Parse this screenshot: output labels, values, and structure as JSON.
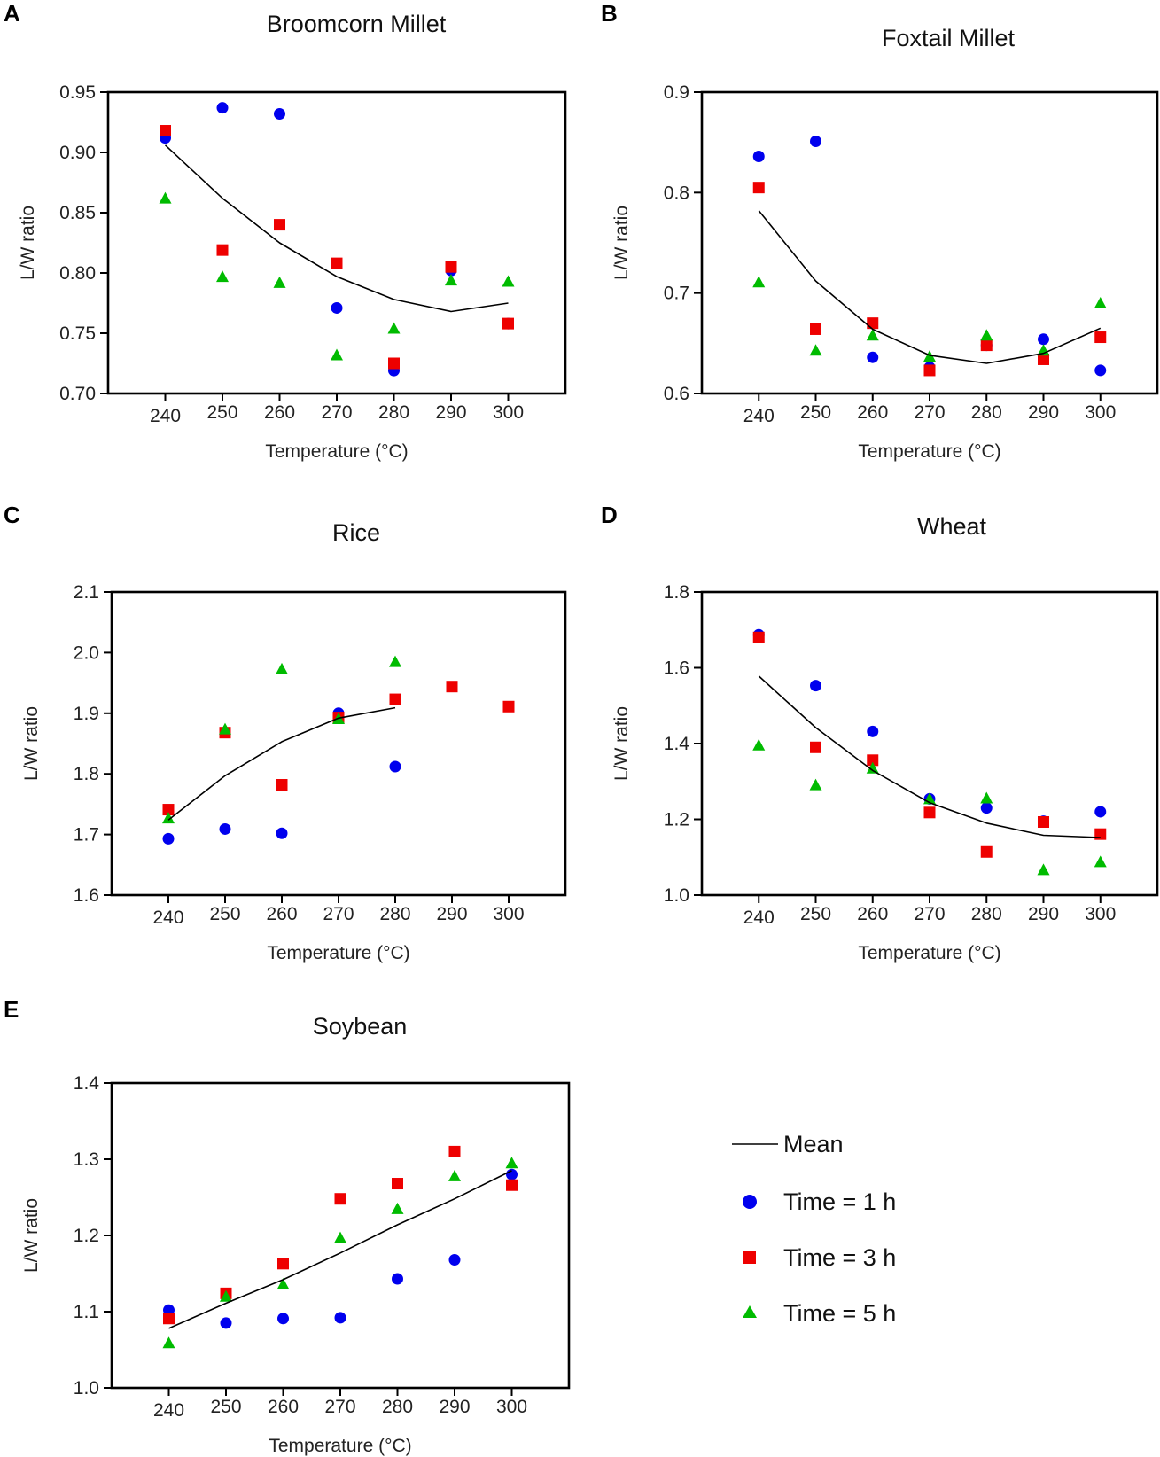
{
  "colors": {
    "time1": "#0000ee",
    "time3": "#ee0000",
    "time5": "#00bb00",
    "mean": "#000000"
  },
  "legend": {
    "mean": "Mean",
    "time1": "Time = 1 h",
    "time3": "Time = 3 h",
    "time5": "Time = 5 h"
  },
  "chart_data": [
    {
      "panel": "A",
      "type": "scatter",
      "title": "Broomcorn Millet",
      "xlabel": "Temperature (°C)",
      "ylabel": "L/W ratio",
      "x": [
        240,
        250,
        260,
        270,
        280,
        290,
        300
      ],
      "xlim": [
        230,
        310
      ],
      "ylim": [
        0.7,
        0.95
      ],
      "yticks": [
        "0.70",
        "0.75",
        "0.80",
        "0.85",
        "0.90",
        "0.95"
      ],
      "series": [
        {
          "name": "Time = 1 h",
          "values": [
            0.912,
            0.937,
            0.932,
            0.771,
            0.719,
            0.802,
            0.758
          ]
        },
        {
          "name": "Time = 3 h",
          "values": [
            0.918,
            0.819,
            0.84,
            0.808,
            0.725,
            0.805,
            0.758
          ]
        },
        {
          "name": "Time = 5 h",
          "values": [
            0.862,
            0.797,
            0.792,
            0.732,
            0.754,
            0.794,
            0.793
          ]
        },
        {
          "name": "Mean",
          "x": [
            240,
            250,
            260,
            270,
            280,
            290,
            300
          ],
          "values": [
            0.906,
            0.862,
            0.825,
            0.797,
            0.778,
            0.768,
            0.775
          ]
        }
      ]
    },
    {
      "panel": "B",
      "type": "scatter",
      "title": "Foxtail Millet",
      "xlabel": "Temperature (°C)",
      "ylabel": "L/W ratio",
      "x": [
        240,
        250,
        260,
        270,
        280,
        290,
        300
      ],
      "xlim": [
        230,
        310
      ],
      "ylim": [
        0.6,
        0.9
      ],
      "yticks": [
        "0.6",
        "0.7",
        "0.8",
        "0.9"
      ],
      "series": [
        {
          "name": "Time = 1 h",
          "values": [
            0.836,
            0.851,
            0.636,
            0.626,
            0.648,
            0.654,
            0.623
          ]
        },
        {
          "name": "Time = 3 h",
          "values": [
            0.805,
            0.664,
            0.67,
            0.623,
            0.648,
            0.634,
            0.656
          ]
        },
        {
          "name": "Time = 5 h",
          "values": [
            0.711,
            0.643,
            0.658,
            0.637,
            0.658,
            0.643,
            0.69
          ]
        },
        {
          "name": "Mean",
          "x": [
            240,
            250,
            260,
            270,
            280,
            290,
            300
          ],
          "values": [
            0.782,
            0.712,
            0.664,
            0.638,
            0.63,
            0.64,
            0.665
          ]
        }
      ]
    },
    {
      "panel": "C",
      "type": "scatter",
      "title": "Rice",
      "xlabel": "Temperature (°C)",
      "ylabel": "L/W ratio",
      "x": [
        240,
        250,
        260,
        270,
        280,
        290,
        300
      ],
      "xlim": [
        230,
        310
      ],
      "ylim": [
        1.6,
        2.1
      ],
      "yticks": [
        "1.6",
        "1.7",
        "1.8",
        "1.9",
        "2.0",
        "2.1"
      ],
      "series": [
        {
          "name": "Time = 1 h",
          "x": [
            240,
            250,
            260,
            270,
            280
          ],
          "values": [
            1.693,
            1.709,
            1.702,
            1.9,
            1.812
          ]
        },
        {
          "name": "Time = 3 h",
          "x": [
            240,
            250,
            260,
            270,
            280,
            290,
            300
          ],
          "values": [
            1.741,
            1.868,
            1.782,
            1.893,
            1.923,
            1.944,
            1.911
          ]
        },
        {
          "name": "Time = 5 h",
          "x": [
            240,
            250,
            260,
            270,
            280
          ],
          "values": [
            1.727,
            1.874,
            1.973,
            1.891,
            1.985
          ]
        },
        {
          "name": "Mean",
          "x": [
            240,
            250,
            260,
            270,
            280
          ],
          "values": [
            1.724,
            1.797,
            1.853,
            1.892,
            1.909
          ]
        }
      ]
    },
    {
      "panel": "D",
      "type": "scatter",
      "title": "Wheat",
      "xlabel": "Temperature (°C)",
      "ylabel": "L/W ratio",
      "x": [
        240,
        250,
        260,
        270,
        280,
        290,
        300
      ],
      "xlim": [
        230,
        310
      ],
      "ylim": [
        1.0,
        1.8
      ],
      "yticks": [
        "1.0",
        "1.2",
        "1.4",
        "1.6",
        "1.8"
      ],
      "series": [
        {
          "name": "Time = 1 h",
          "values": [
            1.687,
            1.553,
            1.432,
            1.254,
            1.23,
            1.195,
            1.22
          ]
        },
        {
          "name": "Time = 3 h",
          "values": [
            1.68,
            1.39,
            1.356,
            1.218,
            1.114,
            1.193,
            1.161
          ]
        },
        {
          "name": "Time = 5 h",
          "values": [
            1.396,
            1.291,
            1.335,
            1.254,
            1.256,
            1.067,
            1.088
          ]
        },
        {
          "name": "Mean",
          "x": [
            240,
            250,
            260,
            270,
            280,
            290,
            300
          ],
          "values": [
            1.578,
            1.442,
            1.329,
            1.244,
            1.19,
            1.158,
            1.152
          ]
        }
      ]
    },
    {
      "panel": "E",
      "type": "scatter",
      "title": "Soybean",
      "xlabel": "Temperature (°C)",
      "ylabel": "L/W ratio",
      "x": [
        240,
        250,
        260,
        270,
        280,
        290,
        300
      ],
      "xlim": [
        230,
        310
      ],
      "ylim": [
        1.0,
        1.4
      ],
      "yticks": [
        "1.0",
        "1.1",
        "1.2",
        "1.3",
        "1.4"
      ],
      "series": [
        {
          "name": "Time = 1 h",
          "values": [
            1.102,
            1.085,
            1.091,
            1.092,
            1.143,
            1.168,
            1.28
          ]
        },
        {
          "name": "Time = 3 h",
          "values": [
            1.091,
            1.124,
            1.163,
            1.248,
            1.268,
            1.31,
            1.266
          ]
        },
        {
          "name": "Time = 5 h",
          "values": [
            1.059,
            1.12,
            1.136,
            1.197,
            1.235,
            1.278,
            1.295
          ]
        },
        {
          "name": "Mean",
          "x": [
            240,
            250,
            260,
            270,
            280,
            290,
            300
          ],
          "values": [
            1.078,
            1.111,
            1.142,
            1.177,
            1.214,
            1.248,
            1.285
          ]
        }
      ]
    }
  ]
}
